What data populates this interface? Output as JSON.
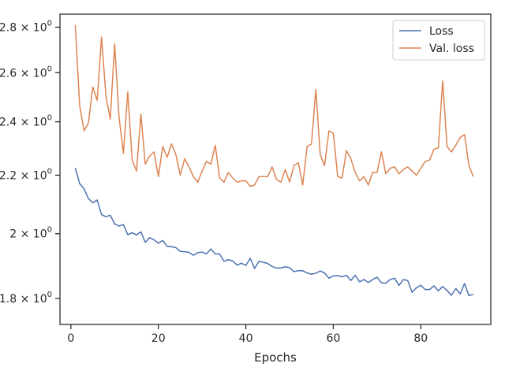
{
  "chart_data": {
    "type": "line",
    "title": "",
    "xlabel": "Epochs",
    "ylabel": "",
    "xlim": [
      -2.5,
      96
    ],
    "ylim": [
      1.725,
      2.86
    ],
    "yscale": "log",
    "grid": false,
    "legend_position": "top-right",
    "x_ticks": [
      0,
      20,
      40,
      60,
      80
    ],
    "x_tick_labels": [
      "0",
      "20",
      "40",
      "60",
      "80"
    ],
    "y_ticks": [
      1.8,
      2.0,
      2.2,
      2.4,
      2.6,
      2.8
    ],
    "y_tick_labels": [
      {
        "base": "1.8",
        "times": "×",
        "mant": "10",
        "exp": "0"
      },
      {
        "base": "2",
        "times": "×",
        "mant": "10",
        "exp": "0"
      },
      {
        "base": "2.2",
        "times": "×",
        "mant": "10",
        "exp": "0"
      },
      {
        "base": "2.4",
        "times": "×",
        "mant": "10",
        "exp": "0"
      },
      {
        "base": "2.6",
        "times": "×",
        "mant": "10",
        "exp": "0"
      },
      {
        "base": "2.8",
        "times": "×",
        "mant": "10",
        "exp": "0"
      }
    ],
    "x_start": 1,
    "series": [
      {
        "name": "Loss",
        "color": "#4c72b0",
        "values": [
          2.226,
          2.17,
          2.152,
          2.118,
          2.103,
          2.113,
          2.063,
          2.056,
          2.061,
          2.032,
          2.025,
          2.03,
          1.997,
          2.003,
          1.996,
          2.006,
          1.972,
          1.987,
          1.98,
          1.969,
          1.978,
          1.959,
          1.958,
          1.955,
          1.943,
          1.942,
          1.94,
          1.931,
          1.939,
          1.941,
          1.935,
          1.951,
          1.935,
          1.935,
          1.912,
          1.917,
          1.913,
          1.9,
          1.906,
          1.899,
          1.921,
          1.89,
          1.912,
          1.909,
          1.905,
          1.896,
          1.891,
          1.891,
          1.895,
          1.892,
          1.88,
          1.883,
          1.883,
          1.876,
          1.872,
          1.875,
          1.882,
          1.876,
          1.86,
          1.867,
          1.868,
          1.864,
          1.869,
          1.853,
          1.869,
          1.849,
          1.856,
          1.847,
          1.856,
          1.863,
          1.846,
          1.845,
          1.856,
          1.86,
          1.838,
          1.856,
          1.853,
          1.818,
          1.831,
          1.839,
          1.826,
          1.826,
          1.837,
          1.822,
          1.835,
          1.823,
          1.809,
          1.829,
          1.813,
          1.844,
          1.808,
          1.812
        ]
      },
      {
        "name": "Val. loss",
        "color": "#dd8452",
        "values": [
          2.81,
          2.465,
          2.365,
          2.395,
          2.54,
          2.485,
          2.755,
          2.505,
          2.41,
          2.725,
          2.42,
          2.28,
          2.52,
          2.255,
          2.215,
          2.43,
          2.24,
          2.27,
          2.285,
          2.195,
          2.305,
          2.265,
          2.315,
          2.275,
          2.2,
          2.26,
          2.23,
          2.195,
          2.175,
          2.215,
          2.25,
          2.24,
          2.31,
          2.19,
          2.175,
          2.21,
          2.19,
          2.175,
          2.18,
          2.18,
          2.16,
          2.165,
          2.195,
          2.195,
          2.195,
          2.23,
          2.185,
          2.175,
          2.22,
          2.175,
          2.235,
          2.245,
          2.165,
          2.305,
          2.315,
          2.53,
          2.275,
          2.235,
          2.365,
          2.355,
          2.195,
          2.19,
          2.29,
          2.26,
          2.21,
          2.18,
          2.195,
          2.165,
          2.21,
          2.21,
          2.285,
          2.205,
          2.225,
          2.23,
          2.205,
          2.22,
          2.23,
          2.215,
          2.2,
          2.225,
          2.25,
          2.255,
          2.295,
          2.3,
          2.565,
          2.305,
          2.285,
          2.31,
          2.34,
          2.35,
          2.235,
          2.195
        ]
      }
    ]
  }
}
